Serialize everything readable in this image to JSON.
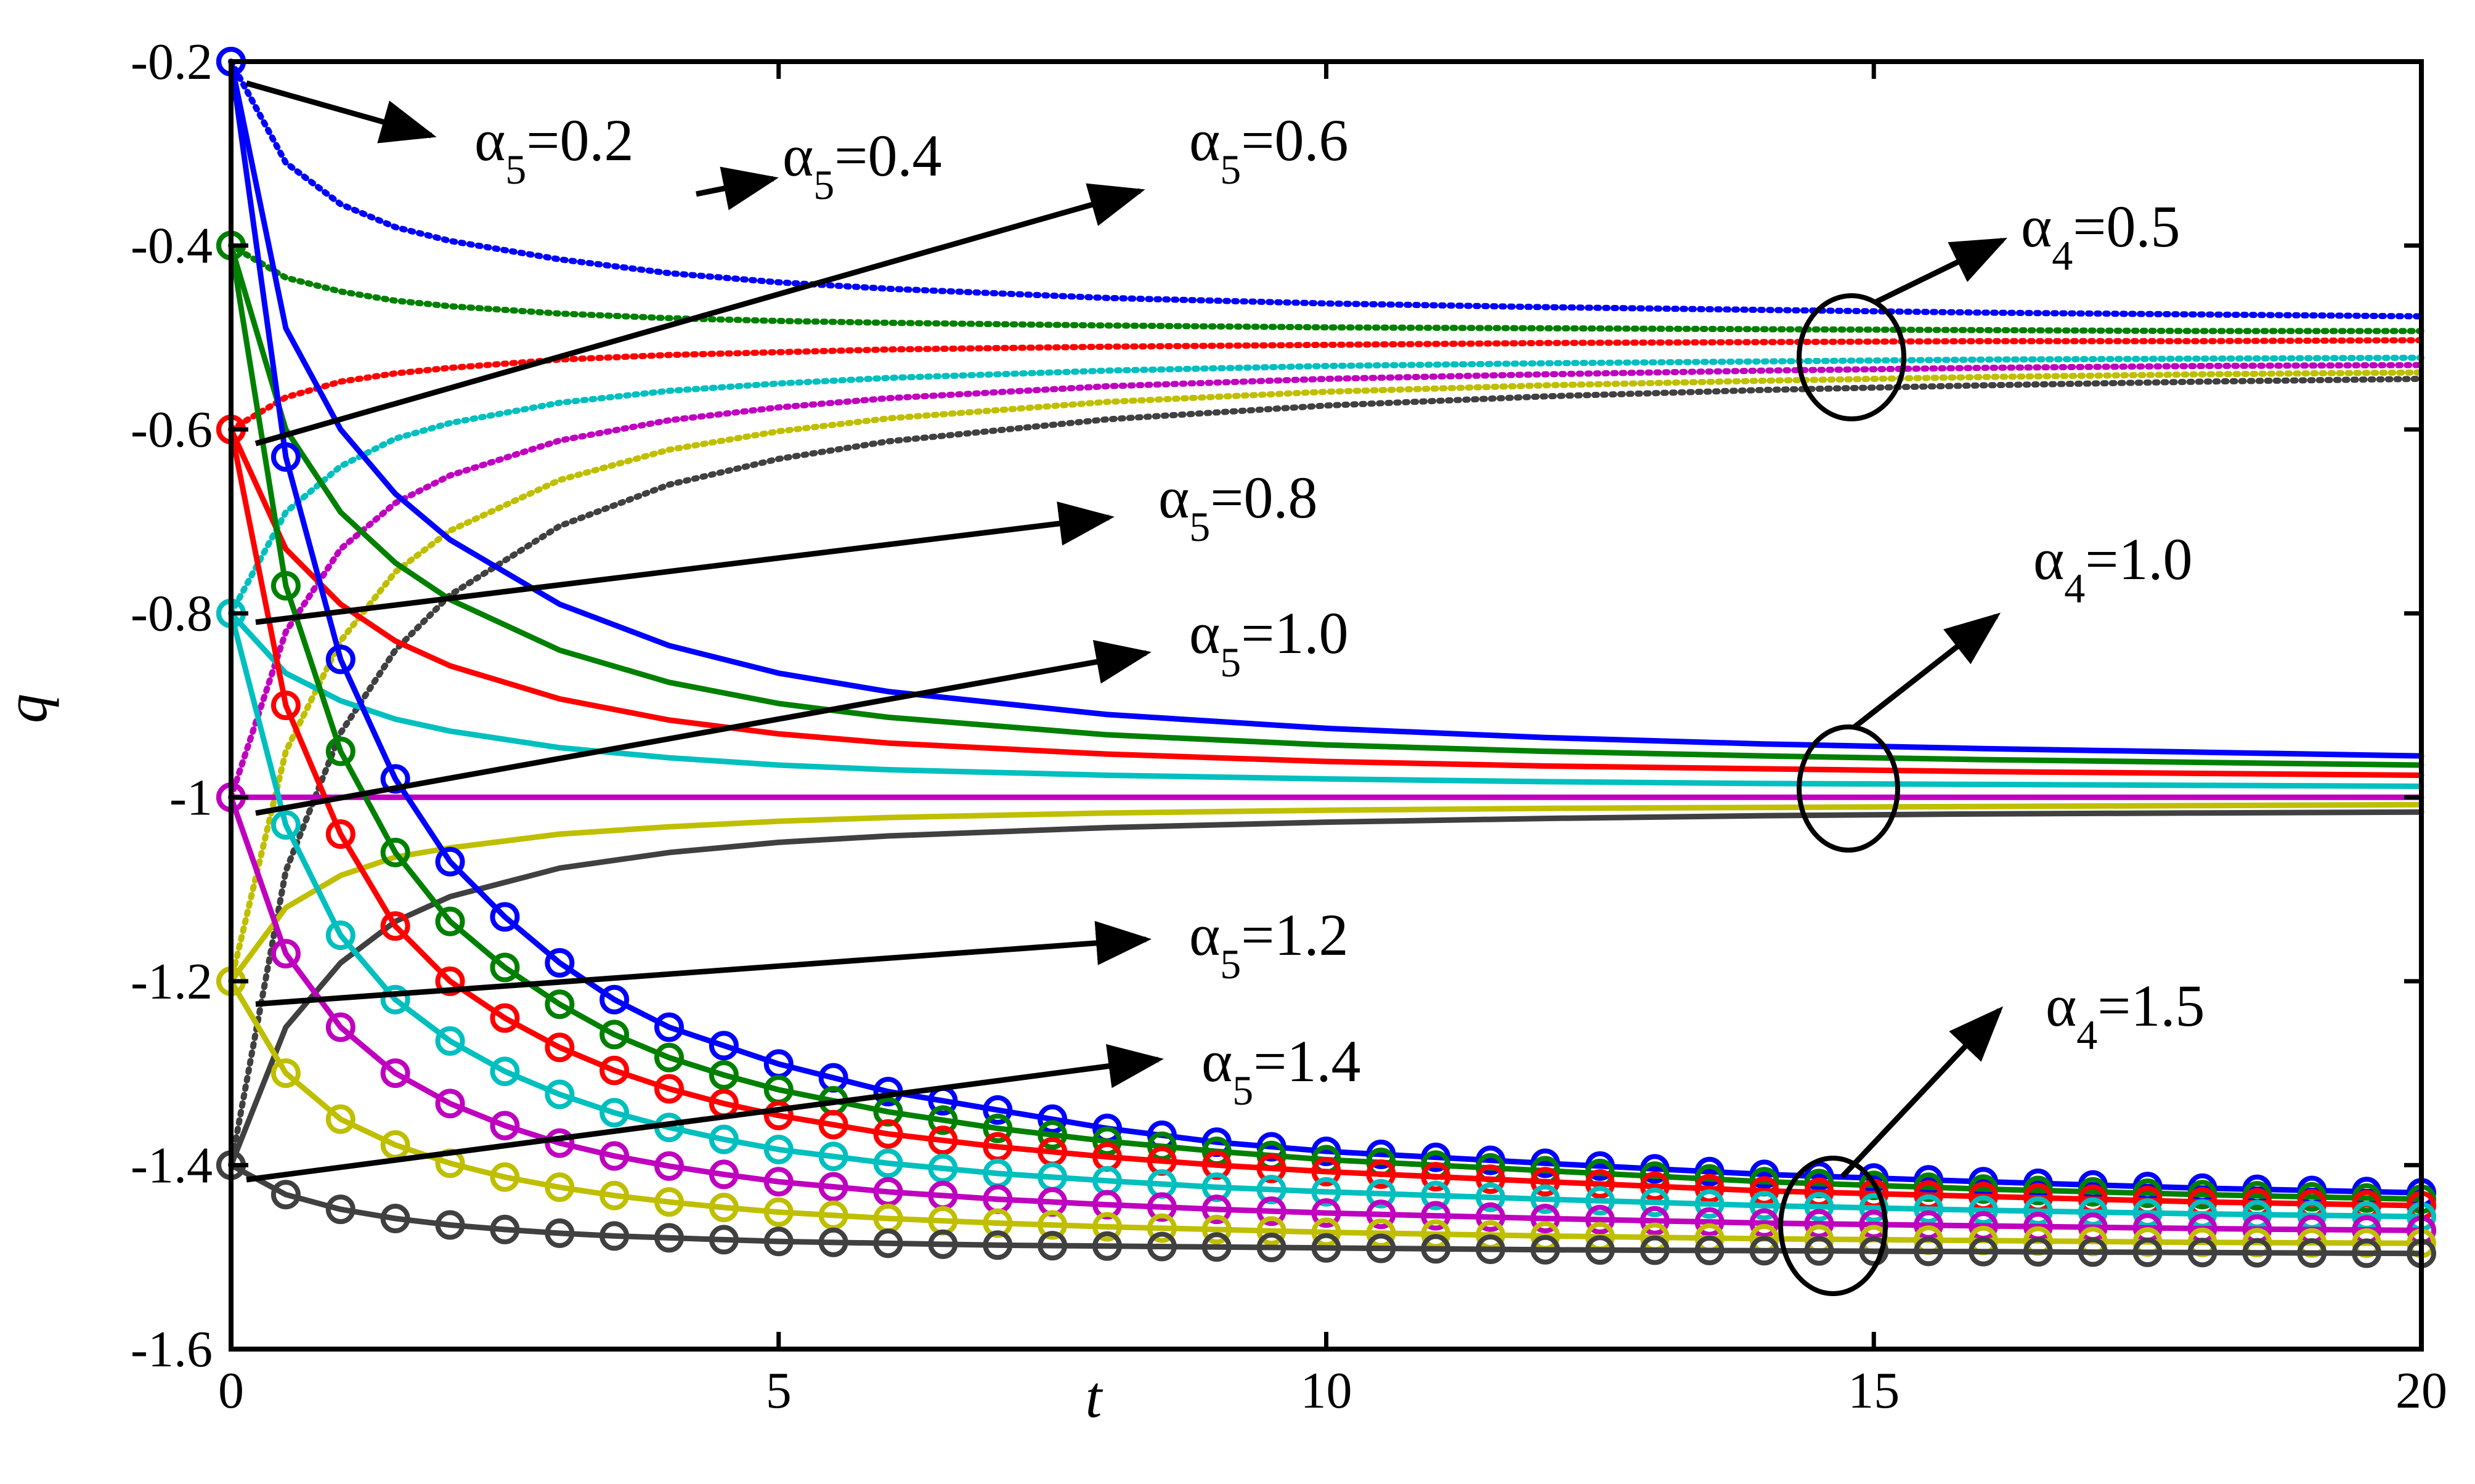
{
  "chart_data": {
    "type": "line",
    "title": "",
    "xlabel": "t",
    "ylabel": "q",
    "xlim": [
      0,
      20
    ],
    "ylim": [
      -1.6,
      -0.2
    ],
    "xticks": [
      "0",
      "5",
      "10",
      "15",
      "20"
    ],
    "yticks": [
      "-0.2",
      "-0.4",
      "-0.6",
      "-0.8",
      "-1",
      "-1.2",
      "-1.4",
      "-1.6"
    ],
    "grid": false,
    "legend": "none",
    "annotations": [
      {
        "base": "α",
        "sub": "5",
        "value": "=0.2"
      },
      {
        "base": "α",
        "sub": "5",
        "value": "=0.4"
      },
      {
        "base": "α",
        "sub": "5",
        "value": "=0.6"
      },
      {
        "base": "α",
        "sub": "5",
        "value": "=0.8"
      },
      {
        "base": "α",
        "sub": "5",
        "value": "=1.0"
      },
      {
        "base": "α",
        "sub": "5",
        "value": "=1.2"
      },
      {
        "base": "α",
        "sub": "5",
        "value": "=1.4"
      },
      {
        "base": "α",
        "sub": "4",
        "value": "=0.5"
      },
      {
        "base": "α",
        "sub": "4",
        "value": "=1.0"
      },
      {
        "base": "α",
        "sub": "4",
        "value": "=1.5"
      }
    ],
    "series_groups": [
      {
        "group": "α4=0.5",
        "style": "dotted",
        "series": [
          {
            "color": "#0000ff",
            "x": [
              0,
              0.5,
              1,
              1.5,
              2,
              3,
              4,
              5,
              6,
              8,
              10,
              12,
              14,
              16,
              18,
              20
            ],
            "y": [
              -0.2,
              -0.31,
              -0.355,
              -0.38,
              -0.395,
              -0.415,
              -0.43,
              -0.44,
              -0.447,
              -0.457,
              -0.463,
              -0.467,
              -0.47,
              -0.473,
              -0.475,
              -0.477
            ]
          },
          {
            "color": "#008000",
            "x": [
              0,
              0.5,
              1,
              1.5,
              2,
              3,
              4,
              5,
              6,
              8,
              10,
              12,
              14,
              16,
              18,
              20
            ],
            "y": [
              -0.4,
              -0.435,
              -0.45,
              -0.46,
              -0.466,
              -0.474,
              -0.479,
              -0.482,
              -0.484,
              -0.487,
              -0.489,
              -0.49,
              -0.491,
              -0.492,
              -0.493,
              -0.493
            ]
          },
          {
            "color": "#ff0000",
            "x": [
              0,
              0.5,
              1,
              1.5,
              2,
              3,
              4,
              5,
              6,
              8,
              10,
              12,
              14,
              16,
              18,
              20
            ],
            "y": [
              -0.6,
              -0.565,
              -0.548,
              -0.539,
              -0.533,
              -0.524,
              -0.519,
              -0.516,
              -0.513,
              -0.51,
              -0.508,
              -0.506,
              -0.505,
              -0.504,
              -0.504,
              -0.503
            ]
          },
          {
            "color": "#00bfbf",
            "x": [
              0,
              0.5,
              1,
              1.5,
              2,
              3,
              4,
              5,
              6,
              8,
              10,
              12,
              14,
              16,
              18,
              20
            ],
            "y": [
              -0.8,
              -0.69,
              -0.64,
              -0.61,
              -0.593,
              -0.571,
              -0.558,
              -0.55,
              -0.544,
              -0.536,
              -0.531,
              -0.528,
              -0.526,
              -0.524,
              -0.523,
              -0.522
            ]
          },
          {
            "color": "#bf00bf",
            "x": [
              0,
              0.5,
              1,
              1.5,
              2,
              3,
              4,
              5,
              6,
              8,
              10,
              12,
              14,
              16,
              18,
              20
            ],
            "y": [
              -1.0,
              -0.82,
              -0.73,
              -0.68,
              -0.65,
              -0.612,
              -0.59,
              -0.576,
              -0.566,
              -0.553,
              -0.545,
              -0.54,
              -0.536,
              -0.533,
              -0.531,
              -0.53
            ]
          },
          {
            "color": "#bfbf00",
            "x": [
              0,
              0.5,
              1,
              1.5,
              2,
              3,
              4,
              5,
              6,
              8,
              10,
              12,
              14,
              16,
              18,
              20
            ],
            "y": [
              -1.2,
              -0.95,
              -0.83,
              -0.755,
              -0.71,
              -0.655,
              -0.622,
              -0.602,
              -0.588,
              -0.57,
              -0.559,
              -0.552,
              -0.547,
              -0.543,
              -0.54,
              -0.538
            ]
          },
          {
            "color": "#404040",
            "x": [
              0,
              0.5,
              1,
              1.5,
              2,
              3,
              4,
              5,
              6,
              8,
              10,
              12,
              14,
              16,
              18,
              20
            ],
            "y": [
              -1.4,
              -1.08,
              -0.93,
              -0.84,
              -0.78,
              -0.705,
              -0.66,
              -0.632,
              -0.613,
              -0.589,
              -0.574,
              -0.564,
              -0.557,
              -0.552,
              -0.548,
              -0.545
            ]
          }
        ]
      },
      {
        "group": "α4=1.0",
        "style": "solid",
        "series": [
          {
            "color": "#0000ff",
            "x": [
              0,
              0.5,
              1,
              1.5,
              2,
              3,
              4,
              5,
              6,
              8,
              10,
              12,
              14,
              16,
              18,
              20
            ],
            "y": [
              -0.2,
              -0.49,
              -0.6,
              -0.67,
              -0.72,
              -0.79,
              -0.835,
              -0.865,
              -0.885,
              -0.91,
              -0.925,
              -0.935,
              -0.942,
              -0.947,
              -0.951,
              -0.955
            ]
          },
          {
            "color": "#008000",
            "x": [
              0,
              0.5,
              1,
              1.5,
              2,
              3,
              4,
              5,
              6,
              8,
              10,
              12,
              14,
              16,
              18,
              20
            ],
            "y": [
              -0.4,
              -0.6,
              -0.69,
              -0.745,
              -0.785,
              -0.84,
              -0.875,
              -0.898,
              -0.913,
              -0.932,
              -0.943,
              -0.95,
              -0.955,
              -0.959,
              -0.962,
              -0.965
            ]
          },
          {
            "color": "#ff0000",
            "x": [
              0,
              0.5,
              1,
              1.5,
              2,
              3,
              4,
              5,
              6,
              8,
              10,
              12,
              14,
              16,
              18,
              20
            ],
            "y": [
              -0.6,
              -0.73,
              -0.79,
              -0.83,
              -0.857,
              -0.893,
              -0.916,
              -0.931,
              -0.941,
              -0.953,
              -0.961,
              -0.966,
              -0.969,
              -0.972,
              -0.974,
              -0.976
            ]
          },
          {
            "color": "#00bfbf",
            "x": [
              0,
              0.5,
              1,
              1.5,
              2,
              3,
              4,
              5,
              6,
              8,
              10,
              12,
              14,
              16,
              18,
              20
            ],
            "y": [
              -0.8,
              -0.865,
              -0.895,
              -0.915,
              -0.928,
              -0.946,
              -0.957,
              -0.965,
              -0.97,
              -0.976,
              -0.98,
              -0.983,
              -0.985,
              -0.986,
              -0.987,
              -0.988
            ]
          },
          {
            "color": "#bf00bf",
            "x": [
              0,
              20
            ],
            "y": [
              -1.0,
              -1.0
            ]
          },
          {
            "color": "#bfbf00",
            "x": [
              0,
              0.5,
              1,
              1.5,
              2,
              3,
              4,
              5,
              6,
              8,
              10,
              12,
              14,
              16,
              18,
              20
            ],
            "y": [
              -1.2,
              -1.12,
              -1.085,
              -1.065,
              -1.055,
              -1.04,
              -1.032,
              -1.026,
              -1.022,
              -1.017,
              -1.014,
              -1.012,
              -1.011,
              -1.01,
              -1.009,
              -1.008
            ]
          },
          {
            "color": "#404040",
            "x": [
              0,
              0.5,
              1,
              1.5,
              2,
              3,
              4,
              5,
              6,
              8,
              10,
              12,
              14,
              16,
              18,
              20
            ],
            "y": [
              -1.4,
              -1.25,
              -1.18,
              -1.135,
              -1.108,
              -1.077,
              -1.06,
              -1.049,
              -1.042,
              -1.033,
              -1.027,
              -1.023,
              -1.02,
              -1.018,
              -1.017,
              -1.016
            ]
          }
        ]
      },
      {
        "group": "α4=1.5",
        "style": "solid-markers",
        "marker": "circle",
        "series": [
          {
            "color": "#0000ff",
            "x": [
              0,
              0.5,
              1,
              1.5,
              2,
              2.5,
              3,
              3.5,
              4,
              4.5,
              5,
              6,
              7,
              8,
              9,
              10,
              12,
              14,
              16,
              18,
              20
            ],
            "y": [
              -0.2,
              -0.63,
              -0.85,
              -0.98,
              -1.07,
              -1.13,
              -1.18,
              -1.22,
              -1.25,
              -1.27,
              -1.29,
              -1.32,
              -1.34,
              -1.36,
              -1.375,
              -1.385,
              -1.398,
              -1.41,
              -1.418,
              -1.425,
              -1.43
            ]
          },
          {
            "color": "#008000",
            "x": [
              0,
              0.5,
              1,
              1.5,
              2,
              2.5,
              3,
              3.5,
              4,
              4.5,
              5,
              6,
              7,
              8,
              9,
              10,
              12,
              14,
              16,
              18,
              20
            ],
            "y": [
              -0.4,
              -0.77,
              -0.95,
              -1.06,
              -1.135,
              -1.185,
              -1.225,
              -1.258,
              -1.283,
              -1.302,
              -1.318,
              -1.342,
              -1.36,
              -1.374,
              -1.385,
              -1.394,
              -1.406,
              -1.418,
              -1.426,
              -1.432,
              -1.437
            ]
          },
          {
            "color": "#ff0000",
            "x": [
              0,
              0.5,
              1,
              1.5,
              2,
              2.5,
              3,
              3.5,
              4,
              4.5,
              5,
              6,
              7,
              8,
              9,
              10,
              12,
              14,
              16,
              18,
              20
            ],
            "y": [
              -0.6,
              -0.9,
              -1.04,
              -1.14,
              -1.2,
              -1.24,
              -1.272,
              -1.297,
              -1.317,
              -1.333,
              -1.346,
              -1.366,
              -1.38,
              -1.391,
              -1.4,
              -1.407,
              -1.418,
              -1.428,
              -1.434,
              -1.44,
              -1.444
            ]
          },
          {
            "color": "#00bfbf",
            "x": [
              0,
              0.5,
              1,
              1.5,
              2,
              2.5,
              3,
              3.5,
              4,
              4.5,
              5,
              6,
              7,
              8,
              9,
              10,
              12,
              14,
              16,
              18,
              20
            ],
            "y": [
              -0.8,
              -1.03,
              -1.15,
              -1.22,
              -1.265,
              -1.298,
              -1.323,
              -1.343,
              -1.359,
              -1.372,
              -1.383,
              -1.398,
              -1.409,
              -1.417,
              -1.424,
              -1.429,
              -1.437,
              -1.444,
              -1.449,
              -1.453,
              -1.456
            ]
          },
          {
            "color": "#bf00bf",
            "x": [
              0,
              0.5,
              1,
              1.5,
              2,
              2.5,
              3,
              3.5,
              4,
              4.5,
              5,
              6,
              7,
              8,
              9,
              10,
              12,
              14,
              16,
              18,
              20
            ],
            "y": [
              -1.0,
              -1.17,
              -1.25,
              -1.3,
              -1.333,
              -1.357,
              -1.376,
              -1.39,
              -1.401,
              -1.41,
              -1.418,
              -1.429,
              -1.437,
              -1.443,
              -1.448,
              -1.452,
              -1.458,
              -1.463,
              -1.466,
              -1.469,
              -1.471
            ]
          },
          {
            "color": "#bfbf00",
            "x": [
              0,
              0.5,
              1,
              1.5,
              2,
              2.5,
              3,
              3.5,
              4,
              4.5,
              5,
              6,
              7,
              8,
              9,
              10,
              12,
              14,
              16,
              18,
              20
            ],
            "y": [
              -1.2,
              -1.3,
              -1.35,
              -1.378,
              -1.398,
              -1.413,
              -1.424,
              -1.433,
              -1.44,
              -1.446,
              -1.451,
              -1.458,
              -1.463,
              -1.467,
              -1.47,
              -1.473,
              -1.477,
              -1.48,
              -1.482,
              -1.484,
              -1.485
            ]
          },
          {
            "color": "#404040",
            "x": [
              0,
              0.5,
              1,
              1.5,
              2,
              2.5,
              3,
              3.5,
              4,
              4.5,
              5,
              6,
              7,
              8,
              9,
              10,
              12,
              14,
              16,
              18,
              20
            ],
            "y": [
              -1.4,
              -1.432,
              -1.448,
              -1.458,
              -1.465,
              -1.47,
              -1.474,
              -1.477,
              -1.479,
              -1.481,
              -1.483,
              -1.485,
              -1.487,
              -1.488,
              -1.489,
              -1.49,
              -1.492,
              -1.493,
              -1.494,
              -1.495,
              -1.496
            ]
          }
        ]
      }
    ]
  }
}
